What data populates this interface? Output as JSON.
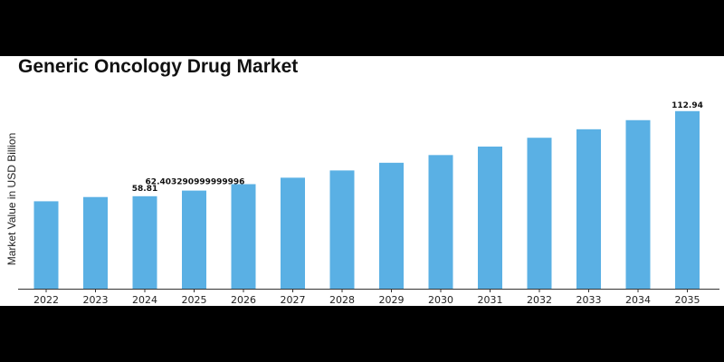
{
  "chart_data": {
    "type": "bar",
    "title": "Generic Oncology Drug Market",
    "xlabel": "",
    "ylabel": "Market Value in USD Billion",
    "categories": [
      "2022",
      "2023",
      "2024",
      "2025",
      "2026",
      "2027",
      "2028",
      "2029",
      "2030",
      "2031",
      "2032",
      "2033",
      "2034",
      "2035"
    ],
    "values": [
      55.6,
      58.3,
      58.81,
      62.403290999999996,
      66.5,
      70.6,
      75.2,
      80.1,
      85.0,
      90.4,
      96.0,
      101.4,
      107.2,
      112.94
    ],
    "data_labels": [
      "",
      "",
      "58.81",
      "62.403290999999996",
      "",
      "",
      "",
      "",
      "",
      "",
      "",
      "",
      "",
      "112.94"
    ],
    "ylim": [
      0,
      118
    ],
    "grid": false,
    "legend": "none",
    "bar_color": "#5ab0e4"
  }
}
